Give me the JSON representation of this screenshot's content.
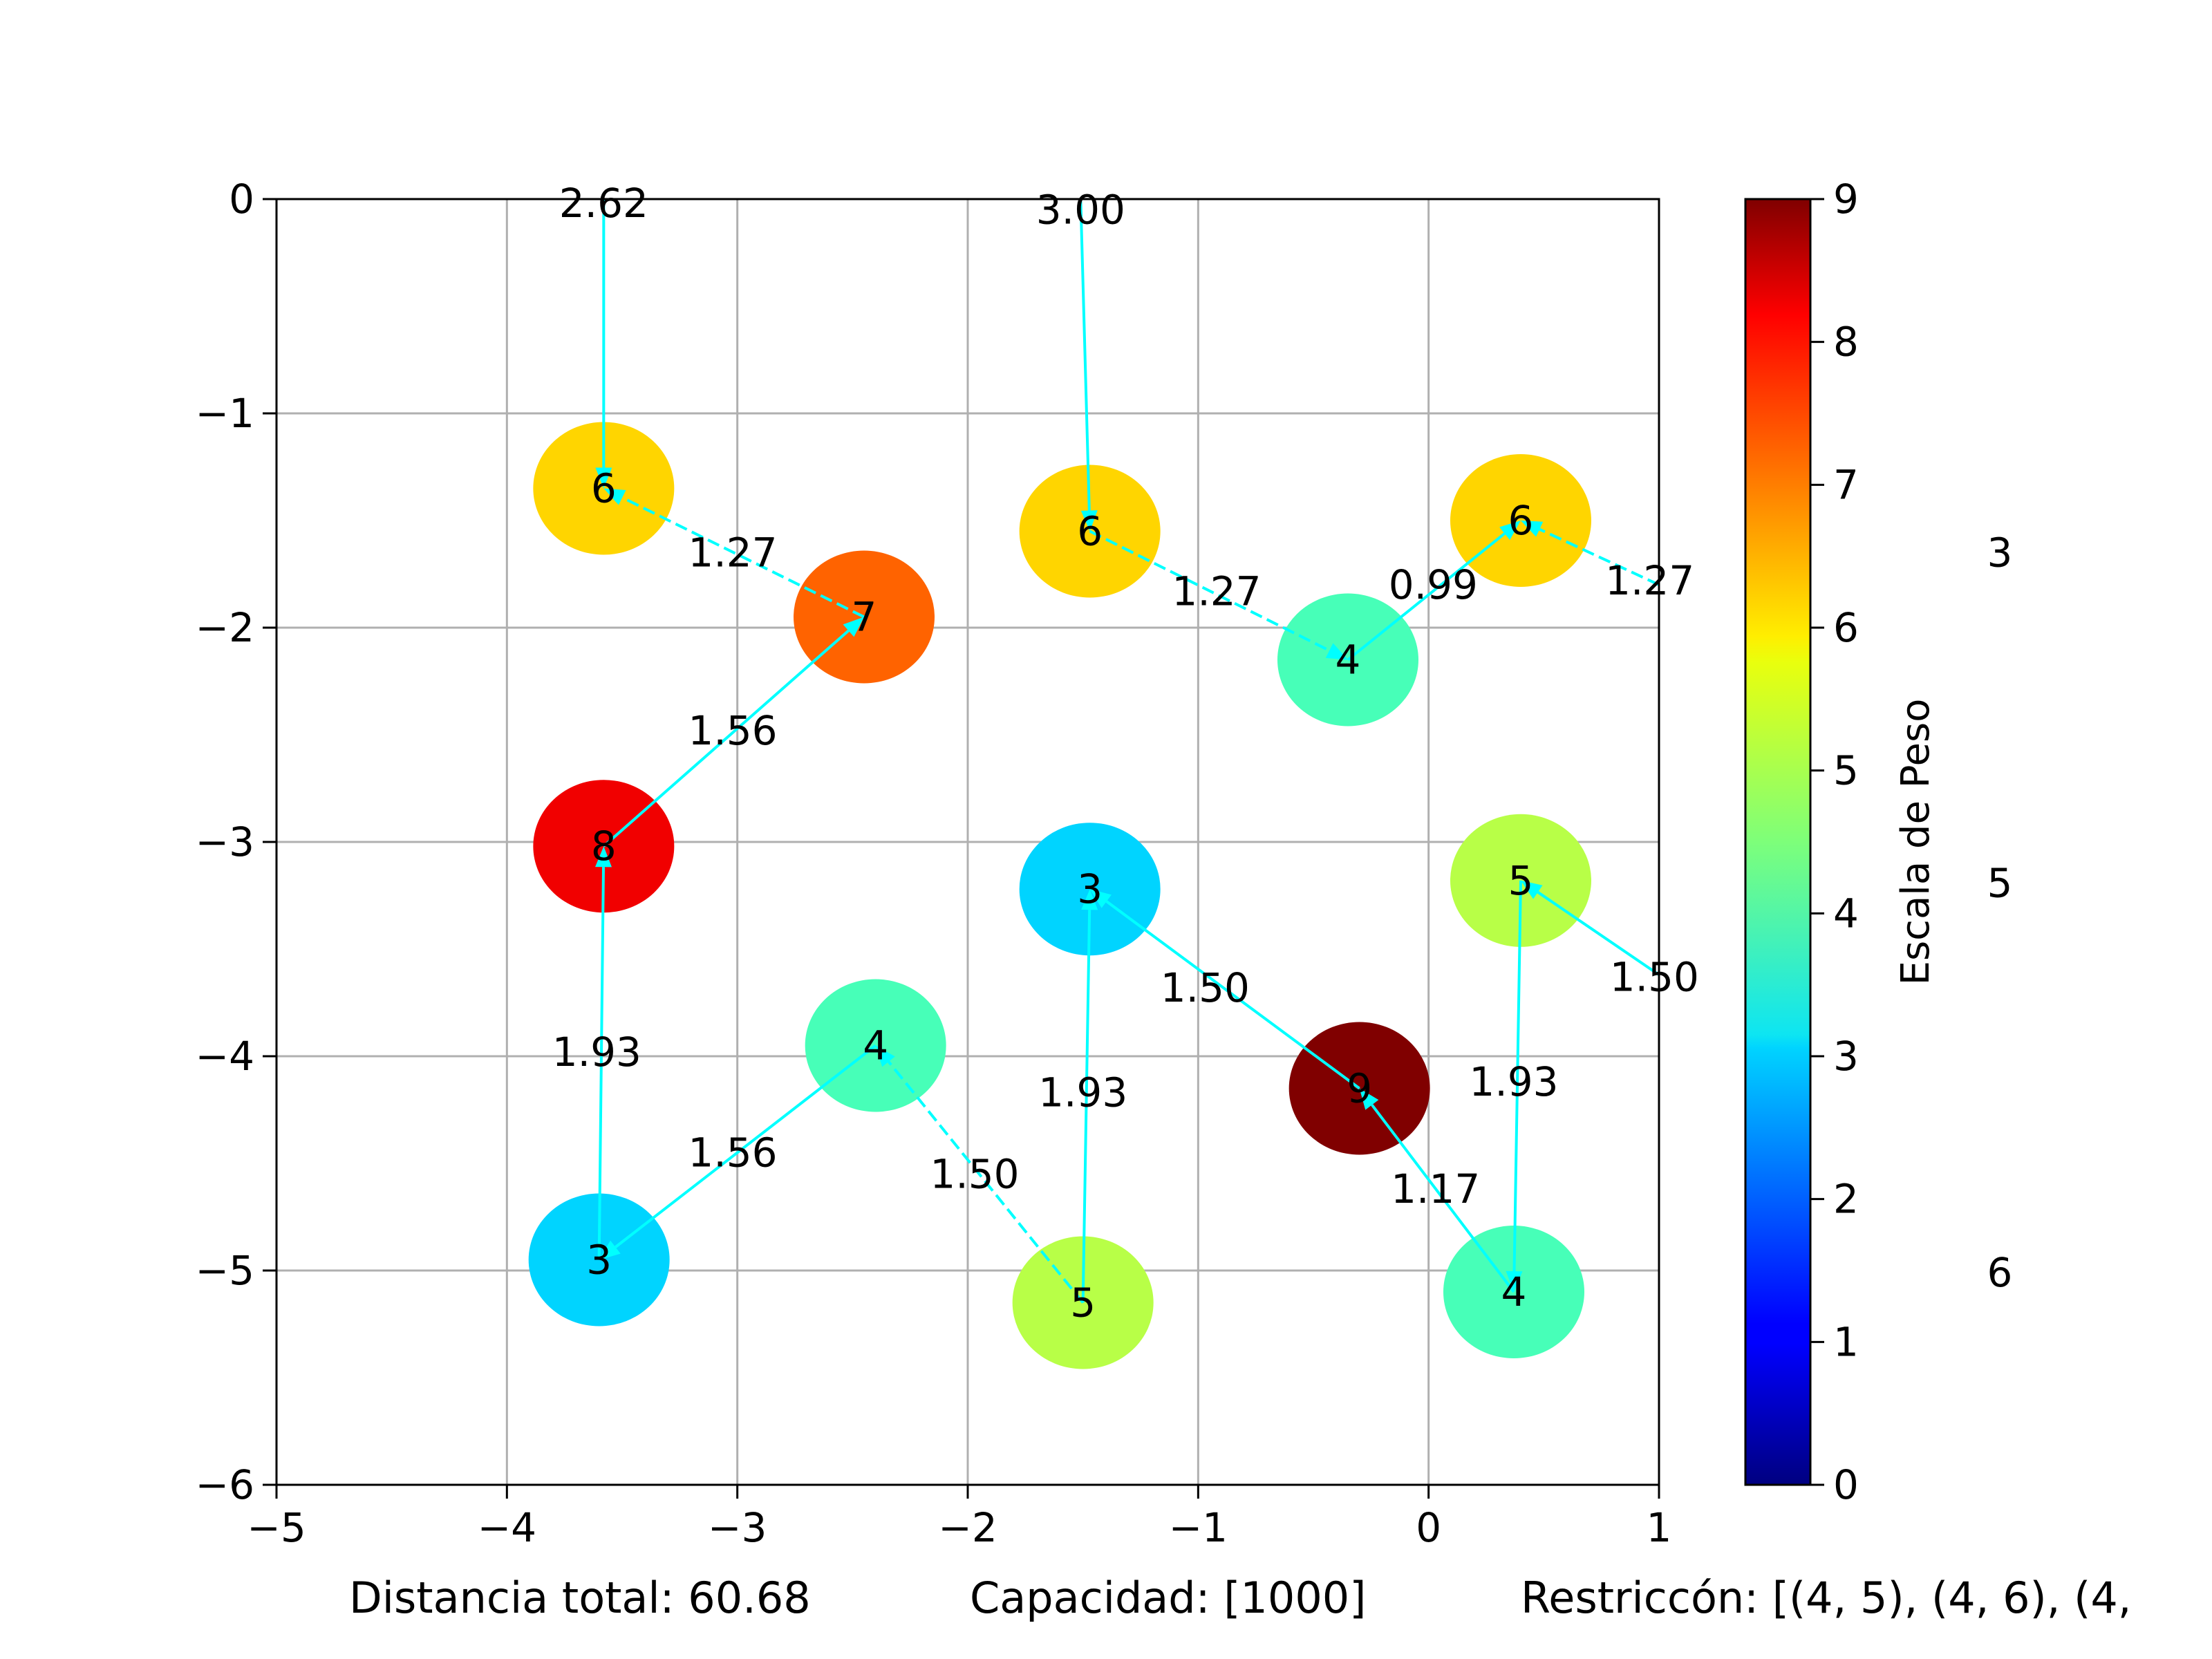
{
  "chart_data": {
    "type": "scatter",
    "xlim": [
      -5,
      1
    ],
    "ylim": [
      -6,
      0
    ],
    "xticks": [
      "−5",
      "−4",
      "−3",
      "−2",
      "−1",
      "0",
      "1"
    ],
    "yticks": [
      "0",
      "−1",
      "−2",
      "−3",
      "−4",
      "−5",
      "−6"
    ],
    "grid": true,
    "colorbar": {
      "label": "Escala de Peso",
      "range": [
        0,
        9
      ],
      "ticks": [
        "0",
        "1",
        "2",
        "3",
        "4",
        "5",
        "6",
        "7",
        "8",
        "9"
      ],
      "colormap": "jet"
    },
    "nodes": [
      {
        "x": -3.58,
        "y": -1.35,
        "weight": 6,
        "label": "6"
      },
      {
        "x": -2.45,
        "y": -1.95,
        "weight": 7,
        "label": "7"
      },
      {
        "x": -3.58,
        "y": -3.02,
        "weight": 8,
        "label": "8"
      },
      {
        "x": -3.6,
        "y": -4.95,
        "weight": 3,
        "label": "3"
      },
      {
        "x": -2.4,
        "y": -3.95,
        "weight": 4,
        "label": "4"
      },
      {
        "x": -1.5,
        "y": -5.15,
        "weight": 5,
        "label": "5"
      },
      {
        "x": -1.47,
        "y": -3.22,
        "weight": 3,
        "label": "3"
      },
      {
        "x": -1.47,
        "y": -1.55,
        "weight": 6,
        "label": "6"
      },
      {
        "x": -0.35,
        "y": -2.15,
        "weight": 4,
        "label": "4"
      },
      {
        "x": 0.4,
        "y": -1.5,
        "weight": 6,
        "label": "6"
      },
      {
        "x": 0.4,
        "y": -3.18,
        "weight": 5,
        "label": "5"
      },
      {
        "x": -0.3,
        "y": -4.15,
        "weight": 9,
        "label": "9"
      },
      {
        "x": 0.37,
        "y": -5.1,
        "weight": 4,
        "label": "4"
      }
    ],
    "edges": [
      {
        "from": [
          -3.58,
          0.0
        ],
        "to": [
          -3.58,
          -1.35
        ],
        "dashed": false
      },
      {
        "from": [
          -2.45,
          -1.95
        ],
        "to": [
          -3.58,
          -1.35
        ],
        "dashed": true
      },
      {
        "from": [
          -3.58,
          -3.02
        ],
        "to": [
          -2.45,
          -1.95
        ],
        "dashed": false
      },
      {
        "from": [
          -3.6,
          -4.95
        ],
        "to": [
          -3.58,
          -3.02
        ],
        "dashed": false
      },
      {
        "from": [
          -2.4,
          -3.95
        ],
        "to": [
          -3.6,
          -4.95
        ],
        "dashed": false
      },
      {
        "from": [
          -1.5,
          -5.15
        ],
        "to": [
          -2.4,
          -3.95
        ],
        "dashed": true
      },
      {
        "from": [
          -1.5,
          -5.15
        ],
        "to": [
          -1.47,
          -3.22
        ],
        "dashed": false
      },
      {
        "from": [
          -0.3,
          -4.15
        ],
        "to": [
          -1.47,
          -3.22
        ],
        "dashed": false
      },
      {
        "from": [
          0.37,
          -5.1
        ],
        "to": [
          -0.3,
          -4.15
        ],
        "dashed": false
      },
      {
        "from": [
          0.4,
          -3.18
        ],
        "to": [
          0.37,
          -5.1
        ],
        "dashed": false
      },
      {
        "from": [
          1.0,
          -3.62
        ],
        "to": [
          0.4,
          -3.18
        ],
        "dashed": false
      },
      {
        "from": [
          -1.51,
          0.0
        ],
        "to": [
          -1.47,
          -1.55
        ],
        "dashed": false
      },
      {
        "from": [
          -1.47,
          -1.55
        ],
        "to": [
          -0.35,
          -2.15
        ],
        "dashed": true
      },
      {
        "from": [
          -0.35,
          -2.15
        ],
        "to": [
          0.4,
          -1.5
        ],
        "dashed": false
      },
      {
        "from": [
          1.0,
          -1.8
        ],
        "to": [
          0.4,
          -1.5
        ],
        "dashed": true
      }
    ],
    "edge_labels": [
      {
        "x": -3.58,
        "y": -0.02,
        "text": "2.62"
      },
      {
        "x": -1.51,
        "y": -0.05,
        "text": "3.00"
      },
      {
        "x": -3.02,
        "y": -1.65,
        "text": "1.27"
      },
      {
        "x": -3.02,
        "y": -2.48,
        "text": "1.56"
      },
      {
        "x": -3.61,
        "y": -3.98,
        "text": "1.93"
      },
      {
        "x": -3.02,
        "y": -4.45,
        "text": "1.56"
      },
      {
        "x": -1.97,
        "y": -4.55,
        "text": "1.50"
      },
      {
        "x": -1.5,
        "y": -4.17,
        "text": "1.93"
      },
      {
        "x": -0.97,
        "y": -3.68,
        "text": "1.50"
      },
      {
        "x": -0.92,
        "y": -1.83,
        "text": "1.27"
      },
      {
        "x": 0.02,
        "y": -1.8,
        "text": "0.99"
      },
      {
        "x": 0.96,
        "y": -1.78,
        "text": "1.27"
      },
      {
        "x": 0.98,
        "y": -3.63,
        "text": "1.50"
      },
      {
        "x": 0.37,
        "y": -4.12,
        "text": "1.93"
      },
      {
        "x": 0.03,
        "y": -4.62,
        "text": "1.17"
      }
    ],
    "side_labels": [
      {
        "text": "3",
        "y": 0.725
      },
      {
        "text": "5",
        "y": 0.468
      },
      {
        "text": "6",
        "y": 0.165
      }
    ]
  },
  "footer": {
    "distance": "Distancia total: 60.68",
    "capacity": "Capacidad: [1000]",
    "restriction": "Restriccón: [(4, 5), (4, 6), (4,"
  }
}
